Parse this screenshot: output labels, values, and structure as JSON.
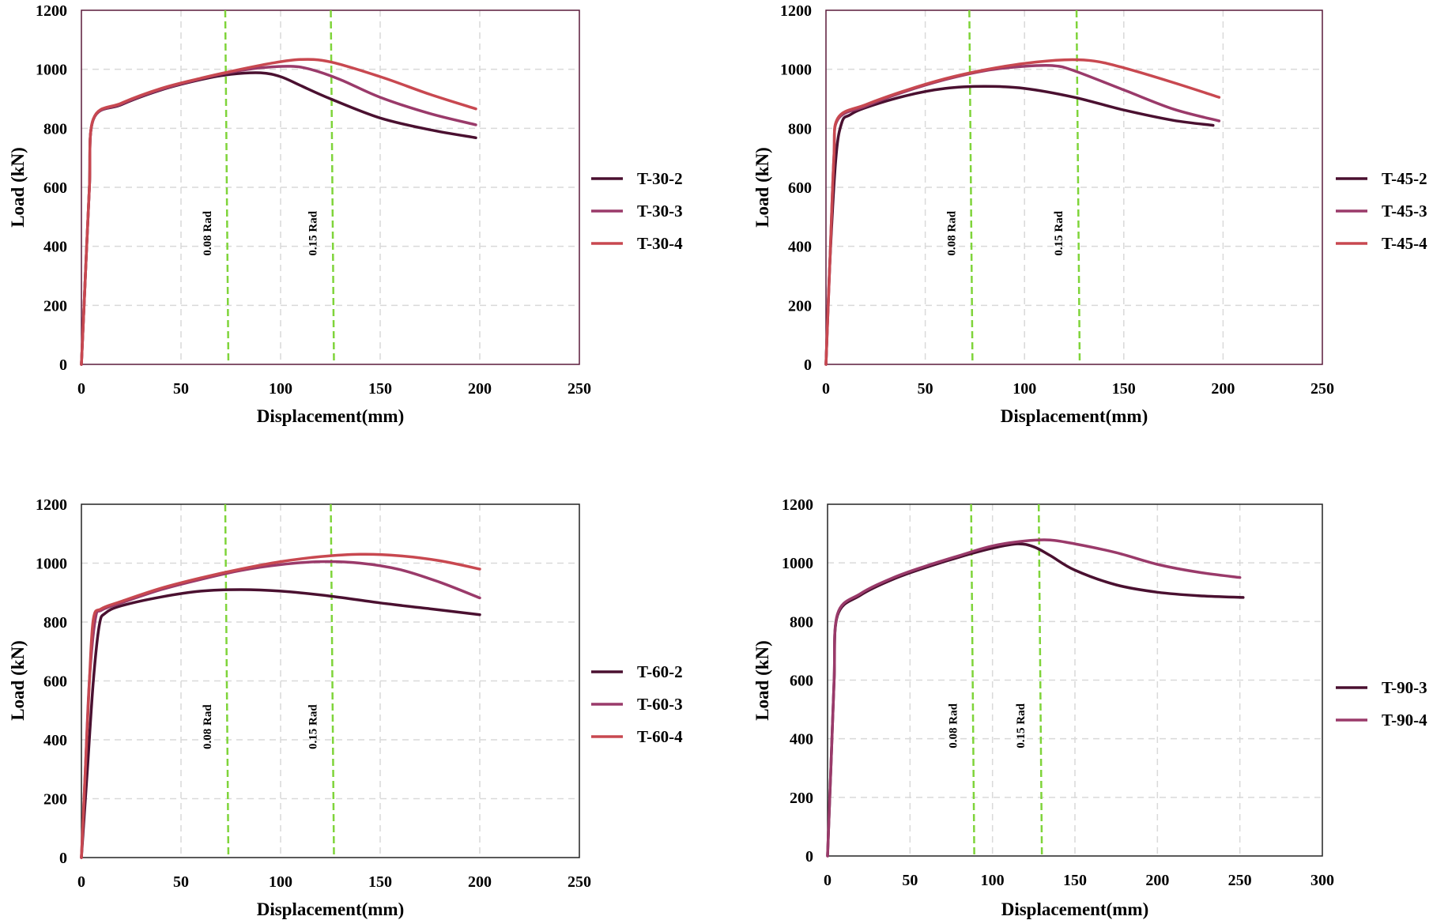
{
  "chart_data": [
    {
      "type": "line",
      "xlabel": "Displacement(mm)",
      "ylabel": "Load (kN)",
      "xlim": [
        0,
        250
      ],
      "ylim": [
        0,
        1200
      ],
      "xticks": [
        "0",
        "50",
        "100",
        "150",
        "200",
        "250"
      ],
      "yticks": [
        "0",
        "200",
        "400",
        "600",
        "800",
        "1000",
        "1200"
      ],
      "grid": true,
      "legend_position": "right",
      "reference_lines": [
        {
          "label": "0.08 Rad",
          "x": 73
        },
        {
          "label": "0.15 Rad",
          "x": 126
        }
      ],
      "series": [
        {
          "name": "T-30-2",
          "color": "#4a1030",
          "x": [
            0,
            2,
            4,
            6,
            20,
            40,
            60,
            75,
            90,
            100,
            110,
            125,
            150,
            175,
            198
          ],
          "y": [
            0,
            300,
            600,
            830,
            880,
            930,
            965,
            983,
            988,
            975,
            945,
            900,
            835,
            795,
            768
          ]
        },
        {
          "name": "T-30-3",
          "color": "#9a3a6a",
          "x": [
            0,
            2,
            4,
            6,
            20,
            40,
            60,
            75,
            90,
            105,
            115,
            130,
            150,
            175,
            198
          ],
          "y": [
            0,
            300,
            600,
            830,
            882,
            932,
            968,
            990,
            1005,
            1010,
            1000,
            965,
            905,
            850,
            812
          ]
        },
        {
          "name": "T-30-4",
          "color": "#c84850",
          "x": [
            0,
            2,
            4,
            6,
            20,
            40,
            60,
            75,
            95,
            110,
            125,
            150,
            175,
            198
          ],
          "y": [
            0,
            300,
            600,
            832,
            885,
            935,
            970,
            993,
            1020,
            1033,
            1025,
            975,
            915,
            866
          ]
        }
      ]
    },
    {
      "type": "line",
      "xlabel": "Displacement(mm)",
      "ylabel": "Load (kN)",
      "xlim": [
        0,
        250
      ],
      "ylim": [
        0,
        1200
      ],
      "xticks": [
        "0",
        "50",
        "100",
        "150",
        "200",
        "250"
      ],
      "yticks": [
        "0",
        "200",
        "400",
        "600",
        "800",
        "1000",
        "1200"
      ],
      "grid": true,
      "legend_position": "right",
      "reference_lines": [
        {
          "label": "0.08 Rad",
          "x": 73
        },
        {
          "label": "0.15 Rad",
          "x": 127
        }
      ],
      "series": [
        {
          "name": "T-45-2",
          "color": "#4a1030",
          "x": [
            0,
            2,
            5,
            8,
            12,
            20,
            40,
            60,
            80,
            100,
            125,
            150,
            175,
            195
          ],
          "y": [
            0,
            350,
            700,
            820,
            845,
            870,
            910,
            935,
            942,
            935,
            905,
            862,
            827,
            810
          ]
        },
        {
          "name": "T-45-3",
          "color": "#9a3a6a",
          "x": [
            0,
            2,
            4,
            6,
            20,
            40,
            60,
            80,
            100,
            115,
            125,
            150,
            175,
            198
          ],
          "y": [
            0,
            350,
            700,
            830,
            875,
            925,
            965,
            995,
            1010,
            1012,
            995,
            930,
            865,
            825
          ]
        },
        {
          "name": "T-45-4",
          "color": "#c84850",
          "x": [
            0,
            2,
            4,
            6,
            20,
            40,
            60,
            80,
            100,
            120,
            135,
            150,
            175,
            198
          ],
          "y": [
            0,
            350,
            700,
            835,
            880,
            928,
            968,
            998,
            1020,
            1032,
            1028,
            1005,
            955,
            905
          ]
        }
      ]
    },
    {
      "type": "line",
      "xlabel": "Displacement(mm)",
      "ylabel": "Load (kN)",
      "xlim": [
        0,
        250
      ],
      "ylim": [
        0,
        1200
      ],
      "xticks": [
        "0",
        "50",
        "100",
        "150",
        "200",
        "250"
      ],
      "yticks": [
        "0",
        "200",
        "400",
        "600",
        "800",
        "1000",
        "1200"
      ],
      "grid": true,
      "legend_position": "right",
      "reference_lines": [
        {
          "label": "0.08 Rad",
          "x": 73
        },
        {
          "label": "0.15 Rad",
          "x": 126
        }
      ],
      "series": [
        {
          "name": "T-60-2",
          "color": "#4a1030",
          "x": [
            0,
            3,
            6,
            9,
            12,
            20,
            40,
            60,
            80,
            100,
            125,
            150,
            175,
            200
          ],
          "y": [
            0,
            300,
            600,
            790,
            830,
            855,
            885,
            905,
            910,
            905,
            888,
            865,
            845,
            825
          ]
        },
        {
          "name": "T-60-3",
          "color": "#9a3a6a",
          "x": [
            0,
            2,
            4,
            7,
            10,
            20,
            40,
            60,
            80,
            100,
            120,
            140,
            160,
            180,
            200
          ],
          "y": [
            0,
            300,
            600,
            810,
            840,
            865,
            910,
            945,
            975,
            995,
            1005,
            1000,
            978,
            935,
            882
          ]
        },
        {
          "name": "T-60-4",
          "color": "#c84850",
          "x": [
            0,
            2,
            4,
            6,
            10,
            20,
            40,
            60,
            80,
            100,
            120,
            140,
            160,
            180,
            200
          ],
          "y": [
            0,
            300,
            600,
            810,
            845,
            870,
            915,
            950,
            980,
            1005,
            1022,
            1030,
            1025,
            1008,
            980
          ]
        }
      ]
    },
    {
      "type": "line",
      "xlabel": "Displacement(mm)",
      "ylabel": "Load (kN)",
      "xlim": [
        0,
        300
      ],
      "ylim": [
        0,
        1200
      ],
      "xticks": [
        "0",
        "50",
        "100",
        "150",
        "200",
        "250",
        "300"
      ],
      "yticks": [
        "0",
        "200",
        "400",
        "600",
        "800",
        "1000",
        "1200"
      ],
      "grid": true,
      "legend_position": "right",
      "reference_lines": [
        {
          "label": "0.08 Rad",
          "x": 88
        },
        {
          "label": "0.15 Rad",
          "x": 129
        }
      ],
      "series": [
        {
          "name": "T-90-3",
          "color": "#4a1030",
          "x": [
            0,
            2,
            4,
            6,
            20,
            40,
            60,
            80,
            100,
            115,
            125,
            135,
            150,
            175,
            200,
            225,
            252
          ],
          "y": [
            0,
            300,
            600,
            820,
            890,
            945,
            985,
            1020,
            1050,
            1065,
            1055,
            1025,
            975,
            925,
            900,
            888,
            882
          ]
        },
        {
          "name": "T-90-4",
          "color": "#9a3a6a",
          "x": [
            0,
            2,
            4,
            6,
            20,
            40,
            60,
            80,
            100,
            120,
            135,
            150,
            175,
            200,
            225,
            250
          ],
          "y": [
            0,
            300,
            600,
            825,
            895,
            950,
            990,
            1025,
            1058,
            1075,
            1078,
            1065,
            1035,
            995,
            968,
            950
          ]
        }
      ]
    }
  ]
}
